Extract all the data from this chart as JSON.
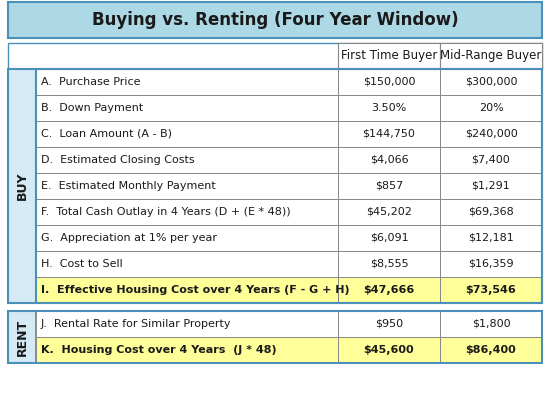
{
  "title": "Buying vs. Renting (Four Year Window)",
  "title_bg": "#add8e6",
  "col_headers": [
    "First Time Buyer",
    "Mid-Range Buyer"
  ],
  "buy_label": "BUY",
  "rent_label": "RENT",
  "buy_rows": [
    [
      "A.  Purchase Price",
      "$150,000",
      "$300,000"
    ],
    [
      "B.  Down Payment",
      "3.50%",
      "20%"
    ],
    [
      "C.  Loan Amount (A - B)",
      "$144,750",
      "$240,000"
    ],
    [
      "D.  Estimated Closing Costs",
      "$4,066",
      "$7,400"
    ],
    [
      "E.  Estimated Monthly Payment",
      "$857",
      "$1,291"
    ],
    [
      "F.  Total Cash Outlay in 4 Years (D + (E * 48))",
      "$45,202",
      "$69,368"
    ],
    [
      "G.  Appreciation at 1% per year",
      "$6,091",
      "$12,181"
    ],
    [
      "H.  Cost to Sell",
      "$8,555",
      "$16,359"
    ],
    [
      "I.  Effective Housing Cost over 4 Years (F - G + H)",
      "$47,666",
      "$73,546"
    ]
  ],
  "rent_rows": [
    [
      "J.  Rental Rate for Similar Property",
      "$950",
      "$1,800"
    ],
    [
      "K.  Housing Cost over 4 Years  (J * 48)",
      "$45,600",
      "$86,400"
    ]
  ],
  "highlight_color": "#ffff99",
  "grid_color": "#888888",
  "border_color": "#4a90b8",
  "section_bg": "#d6eaf5",
  "title_font_size": 12,
  "header_font_size": 8.5,
  "label_font_size": 8,
  "cell_font_size": 8
}
